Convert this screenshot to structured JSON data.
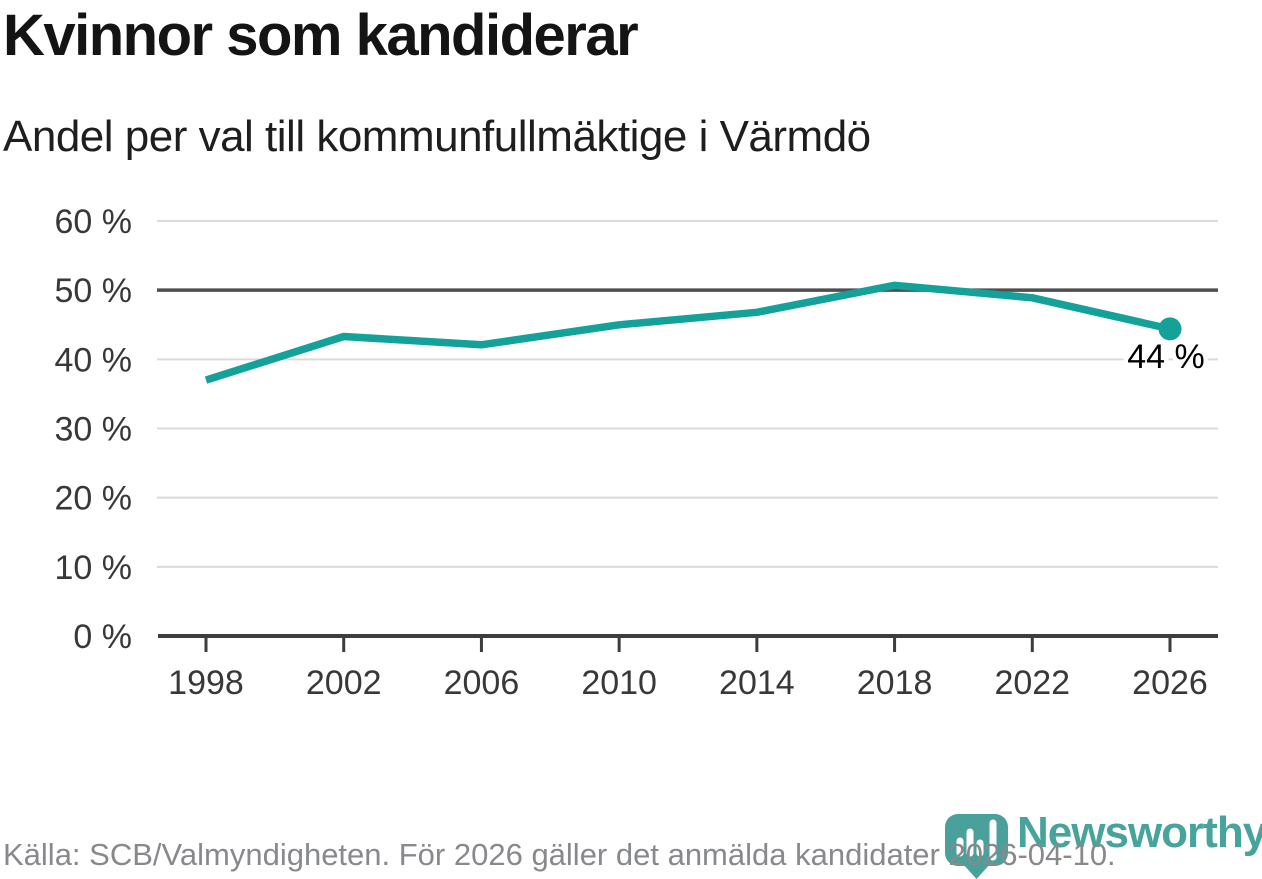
{
  "header": {
    "title": "Kvinnor som kandiderar",
    "subtitle": "Andel per val till kommunfullmäktige i Värmdö"
  },
  "chart_data": {
    "type": "line",
    "title": "Kvinnor som kandiderar",
    "subtitle": "Andel per val till kommunfullmäktige i Värmdö",
    "x": [
      1998,
      2002,
      2006,
      2010,
      2014,
      2018,
      2022,
      2026
    ],
    "x_tick_labels": [
      "1998",
      "2002",
      "2006",
      "2010",
      "2014",
      "2018",
      "2022",
      "2026"
    ],
    "values": [
      37.0,
      43.3,
      42.1,
      45.0,
      46.8,
      50.7,
      48.9,
      44.4
    ],
    "unit": "%",
    "y_ticks": [
      0,
      10,
      20,
      30,
      40,
      50,
      60
    ],
    "y_tick_labels": [
      "0 %",
      "10 %",
      "20 %",
      "30 %",
      "40 %",
      "50 %",
      "60 %"
    ],
    "ylim": [
      0,
      60
    ],
    "xlim": [
      1996.6,
      2027.4
    ],
    "grid": true,
    "legend": "none",
    "reference_line": 50,
    "end_point_label": "44 %"
  },
  "footer": {
    "source": "Källa: SCB/Valmyndigheten. För 2026 gäller det anmälda kandidater 2026-04-10.",
    "brand": "Newsworthy"
  },
  "colors": {
    "line": "#14a19a",
    "end_marker": "#14a19a",
    "reference_line": "#4f4f4f",
    "gridline": "#dadada",
    "axis": "#3d3d3d",
    "axis_text": "#383838",
    "title_text": "#141414",
    "muted_text": "#87898c",
    "brand_teal": "#46a49d",
    "brand_bubble": "#4aa19b"
  }
}
